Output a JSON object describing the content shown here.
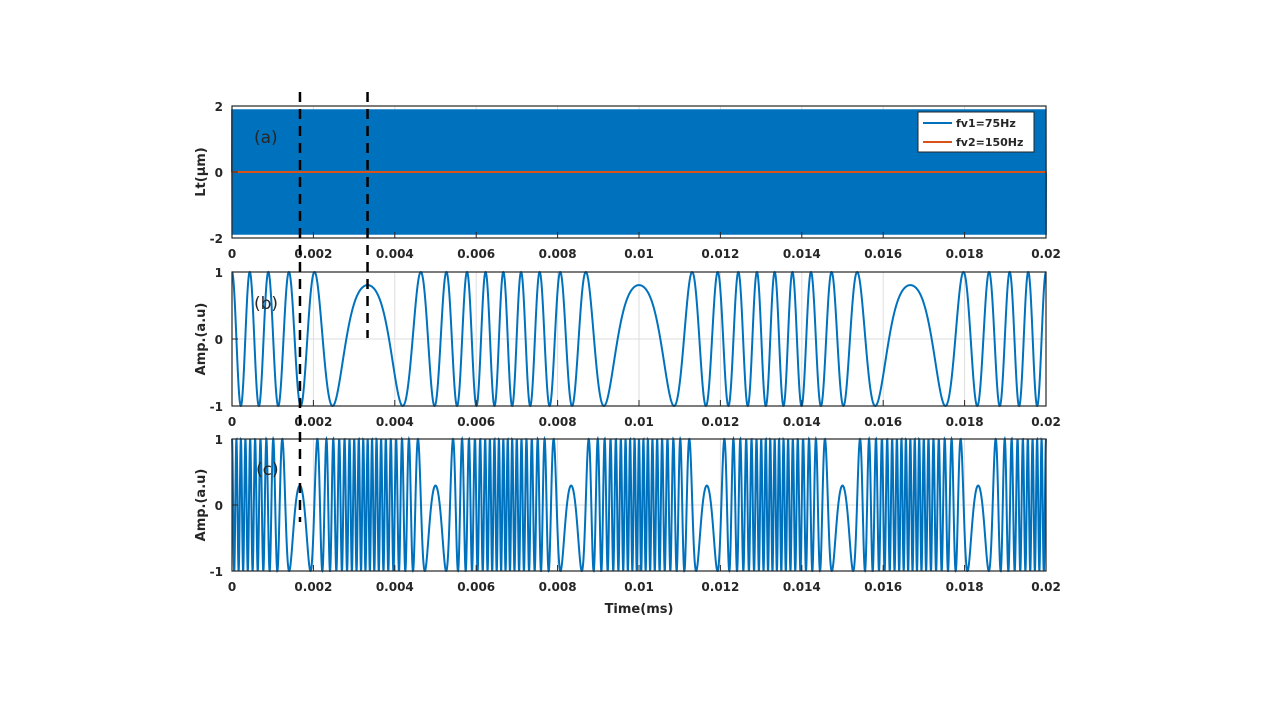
{
  "chart_data": [
    {
      "type": "line",
      "panel_label": "(a)",
      "xlabel": "",
      "ylabel": "Lt(μm)",
      "xlim": [
        0,
        0.02
      ],
      "ylim": [
        -2,
        2
      ],
      "xticks": [
        "0",
        "0.002",
        "0.004",
        "0.006",
        "0.008",
        "0.01",
        "0.012",
        "0.014",
        "0.016",
        "0.018",
        "0.02"
      ],
      "yticks": [
        "-2",
        "0",
        "2"
      ],
      "grid": true,
      "legend_position": "top-right",
      "series": [
        {
          "name": "fv1=75Hz",
          "color": "#0072BD",
          "function": "sine",
          "amplitude": 1.9,
          "frequency": 75
        },
        {
          "name": "fv2=150Hz",
          "color": "#D95319",
          "function": "sine",
          "amplitude": 1.9,
          "frequency": 150
        }
      ],
      "vertical_markers": [
        0.00167,
        0.00333
      ]
    },
    {
      "type": "line",
      "panel_label": "(b)",
      "xlabel": "",
      "ylabel": "Amp.(a.u)",
      "xlim": [
        0,
        0.02
      ],
      "ylim": [
        -1,
        1
      ],
      "xticks": [
        "0",
        "0.002",
        "0.004",
        "0.006",
        "0.008",
        "0.01",
        "0.012",
        "0.014",
        "0.016",
        "0.018",
        "0.02"
      ],
      "yticks": [
        "-1",
        "0",
        "1"
      ],
      "grid": true,
      "series": [
        {
          "color": "#0072BD",
          "function": "cos(phase_scale * Lt_fv1)",
          "source_series": "fv1=75Hz",
          "phase_scale": 16.2
        }
      ],
      "vertical_markers": [
        0.00167,
        0.00333
      ]
    },
    {
      "type": "line",
      "panel_label": "(c)",
      "xlabel": "Time(ms)",
      "ylabel": "Amp.(a.u)",
      "xlim": [
        0,
        0.02
      ],
      "ylim": [
        -1,
        1
      ],
      "xticks": [
        "0",
        "0.002",
        "0.004",
        "0.006",
        "0.008",
        "0.01",
        "0.012",
        "0.014",
        "0.016",
        "0.018",
        "0.02"
      ],
      "yticks": [
        "-1",
        "0",
        "1"
      ],
      "grid": true,
      "series": [
        {
          "color": "#0072BD",
          "function": "cos(phase_scale * Lt_fv2)",
          "source_series": "fv2=150Hz",
          "phase_scale": 32.4
        }
      ],
      "vertical_markers": [
        0.00167
      ]
    }
  ]
}
